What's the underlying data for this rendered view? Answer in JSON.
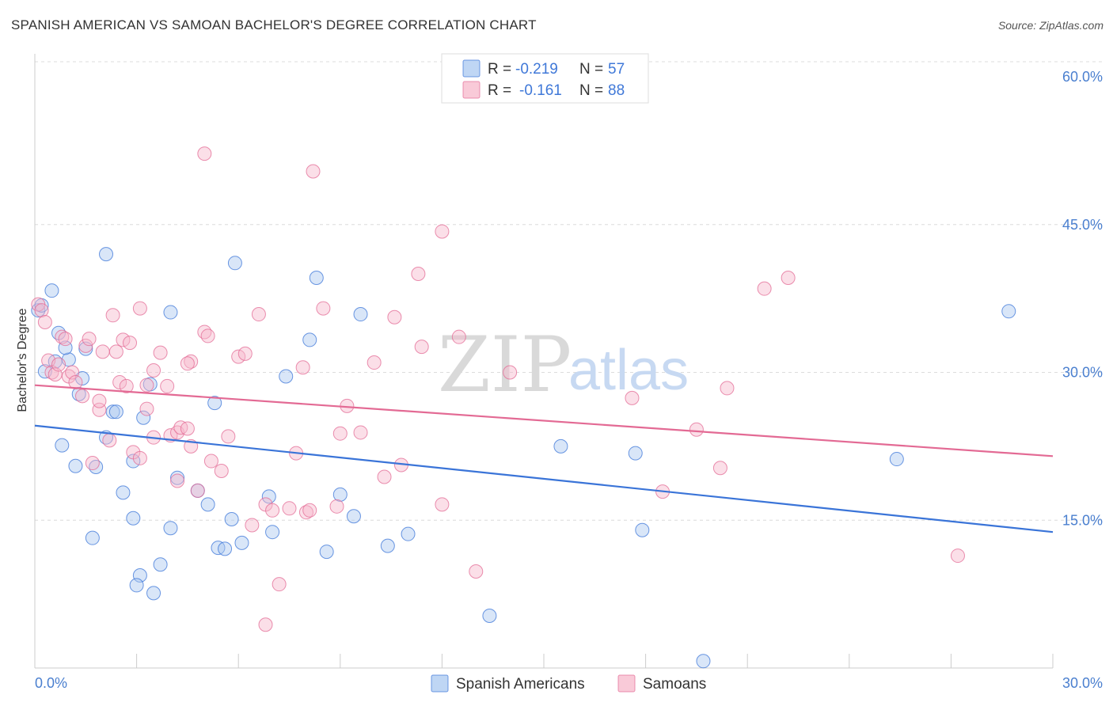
{
  "header": {
    "title": "SPANISH AMERICAN VS SAMOAN BACHELOR'S DEGREE CORRELATION CHART",
    "source": "Source: ZipAtlas.com"
  },
  "legend": {
    "r_label": "R =",
    "n_label": "N =",
    "rows": [
      {
        "r": "-0.219",
        "n": "57",
        "color": "#aac8f0"
      },
      {
        "r": "-0.161",
        "n": "88",
        "color": "#f7b8cb"
      }
    ]
  },
  "watermark": {
    "zip": "ZIP",
    "atlas": "atlas"
  },
  "chart_data": {
    "type": "scatter",
    "title": "SPANISH AMERICAN VS SAMOAN BACHELOR'S DEGREE CORRELATION CHART",
    "xlabel": "",
    "ylabel": "Bachelor's Degree",
    "xlim": [
      0,
      30
    ],
    "ylim": [
      0,
      60
    ],
    "x_tick_labels": [
      "0.0%",
      "30.0%"
    ],
    "y_ticks": [
      15,
      30,
      45,
      60
    ],
    "y_tick_labels": [
      "15.0%",
      "30.0%",
      "45.0%",
      "60.0%"
    ],
    "grid": true,
    "legend_position": "top-center",
    "series": [
      {
        "name": "Spanish Americans",
        "color": "#3a74d8",
        "fill": "#aac8f0",
        "R": -0.219,
        "N": 57,
        "trend": {
          "x": [
            0,
            30
          ],
          "y": [
            24.6,
            13.8
          ]
        },
        "points": [
          [
            0.1,
            36.3
          ],
          [
            0.2,
            36.8
          ],
          [
            0.5,
            38.3
          ],
          [
            0.6,
            31.1
          ],
          [
            0.3,
            30.1
          ],
          [
            0.7,
            34.0
          ],
          [
            1.0,
            31.3
          ],
          [
            0.9,
            32.5
          ],
          [
            1.5,
            32.4
          ],
          [
            1.4,
            29.4
          ],
          [
            1.3,
            27.8
          ],
          [
            0.8,
            22.6
          ],
          [
            1.2,
            20.5
          ],
          [
            1.8,
            20.4
          ],
          [
            2.1,
            23.4
          ],
          [
            2.3,
            26.0
          ],
          [
            2.4,
            26.0
          ],
          [
            3.2,
            25.4
          ],
          [
            3.4,
            28.8
          ],
          [
            2.9,
            21.0
          ],
          [
            2.6,
            17.8
          ],
          [
            2.9,
            15.2
          ],
          [
            1.7,
            13.2
          ],
          [
            3.1,
            9.4
          ],
          [
            3.0,
            8.4
          ],
          [
            3.5,
            7.6
          ],
          [
            3.7,
            10.5
          ],
          [
            4.0,
            14.2
          ],
          [
            4.0,
            36.1
          ],
          [
            4.2,
            19.3
          ],
          [
            4.8,
            18.0
          ],
          [
            5.1,
            16.6
          ],
          [
            5.3,
            26.9
          ],
          [
            5.4,
            12.2
          ],
          [
            5.6,
            12.1
          ],
          [
            5.8,
            15.1
          ],
          [
            5.9,
            41.1
          ],
          [
            6.1,
            12.7
          ],
          [
            6.9,
            17.4
          ],
          [
            7.0,
            13.8
          ],
          [
            7.4,
            29.6
          ],
          [
            8.1,
            33.3
          ],
          [
            8.3,
            39.6
          ],
          [
            8.6,
            11.8
          ],
          [
            9.0,
            17.6
          ],
          [
            9.4,
            15.4
          ],
          [
            9.6,
            35.9
          ],
          [
            10.4,
            12.4
          ],
          [
            11.0,
            13.6
          ],
          [
            13.4,
            5.3
          ],
          [
            2.1,
            42.0
          ],
          [
            15.5,
            22.5
          ],
          [
            17.7,
            21.8
          ],
          [
            17.9,
            14.0
          ],
          [
            25.4,
            21.2
          ],
          [
            28.7,
            36.2
          ],
          [
            19.7,
            0.7
          ]
        ]
      },
      {
        "name": "Samoans",
        "color": "#e36a94",
        "fill": "#f7b8cb",
        "R": -0.161,
        "N": 88,
        "trend": {
          "x": [
            0,
            30
          ],
          "y": [
            28.7,
            21.5
          ]
        },
        "points": [
          [
            0.1,
            36.9
          ],
          [
            0.2,
            36.3
          ],
          [
            0.3,
            35.1
          ],
          [
            0.4,
            31.2
          ],
          [
            0.5,
            30.0
          ],
          [
            0.6,
            29.8
          ],
          [
            0.8,
            33.6
          ],
          [
            0.9,
            33.4
          ],
          [
            1.0,
            29.6
          ],
          [
            1.1,
            30.0
          ],
          [
            1.2,
            29.0
          ],
          [
            1.4,
            27.6
          ],
          [
            1.5,
            32.7
          ],
          [
            1.7,
            20.8
          ],
          [
            1.9,
            26.2
          ],
          [
            2.0,
            32.1
          ],
          [
            2.2,
            23.1
          ],
          [
            2.3,
            35.8
          ],
          [
            2.4,
            32.1
          ],
          [
            2.5,
            29.0
          ],
          [
            2.6,
            33.3
          ],
          [
            2.8,
            33.0
          ],
          [
            2.9,
            21.9
          ],
          [
            3.1,
            21.3
          ],
          [
            3.1,
            36.5
          ],
          [
            3.3,
            26.3
          ],
          [
            3.3,
            28.7
          ],
          [
            3.5,
            30.2
          ],
          [
            3.7,
            32.0
          ],
          [
            3.9,
            28.6
          ],
          [
            4.0,
            23.6
          ],
          [
            4.2,
            23.9
          ],
          [
            4.3,
            24.4
          ],
          [
            4.5,
            24.3
          ],
          [
            4.2,
            19.0
          ],
          [
            4.6,
            31.1
          ],
          [
            4.6,
            22.5
          ],
          [
            4.8,
            18.0
          ],
          [
            5.0,
            52.2
          ],
          [
            5.0,
            34.1
          ],
          [
            5.1,
            33.7
          ],
          [
            5.2,
            21.0
          ],
          [
            5.5,
            20.0
          ],
          [
            5.7,
            23.5
          ],
          [
            6.0,
            31.6
          ],
          [
            6.2,
            31.9
          ],
          [
            6.4,
            14.5
          ],
          [
            6.6,
            35.9
          ],
          [
            6.8,
            16.6
          ],
          [
            7.0,
            16.0
          ],
          [
            7.2,
            8.5
          ],
          [
            6.8,
            4.4
          ],
          [
            7.5,
            16.2
          ],
          [
            7.7,
            21.8
          ],
          [
            7.9,
            30.5
          ],
          [
            8.0,
            15.8
          ],
          [
            8.1,
            16.0
          ],
          [
            8.2,
            50.4
          ],
          [
            8.5,
            36.5
          ],
          [
            8.9,
            16.4
          ],
          [
            9.0,
            23.8
          ],
          [
            9.2,
            26.6
          ],
          [
            9.6,
            23.9
          ],
          [
            10.0,
            31.0
          ],
          [
            10.3,
            19.4
          ],
          [
            10.6,
            35.6
          ],
          [
            10.8,
            20.6
          ],
          [
            11.3,
            40.0
          ],
          [
            11.4,
            32.6
          ],
          [
            12.0,
            44.3
          ],
          [
            12.0,
            16.6
          ],
          [
            12.5,
            33.6
          ],
          [
            13.0,
            9.8
          ],
          [
            14.0,
            30.0
          ],
          [
            17.6,
            27.4
          ],
          [
            18.5,
            17.9
          ],
          [
            19.5,
            24.2
          ],
          [
            20.2,
            20.3
          ],
          [
            20.4,
            28.4
          ],
          [
            21.5,
            38.5
          ],
          [
            22.2,
            39.6
          ],
          [
            27.2,
            11.4
          ],
          [
            1.9,
            27.1
          ],
          [
            3.5,
            23.4
          ],
          [
            1.6,
            33.4
          ],
          [
            0.7,
            30.8
          ],
          [
            2.7,
            28.6
          ],
          [
            4.5,
            30.9
          ]
        ]
      }
    ]
  },
  "bottom_legend": [
    {
      "label": "Spanish Americans",
      "color": "#aac8f0"
    },
    {
      "label": "Samoans",
      "color": "#f7b8cb"
    }
  ]
}
